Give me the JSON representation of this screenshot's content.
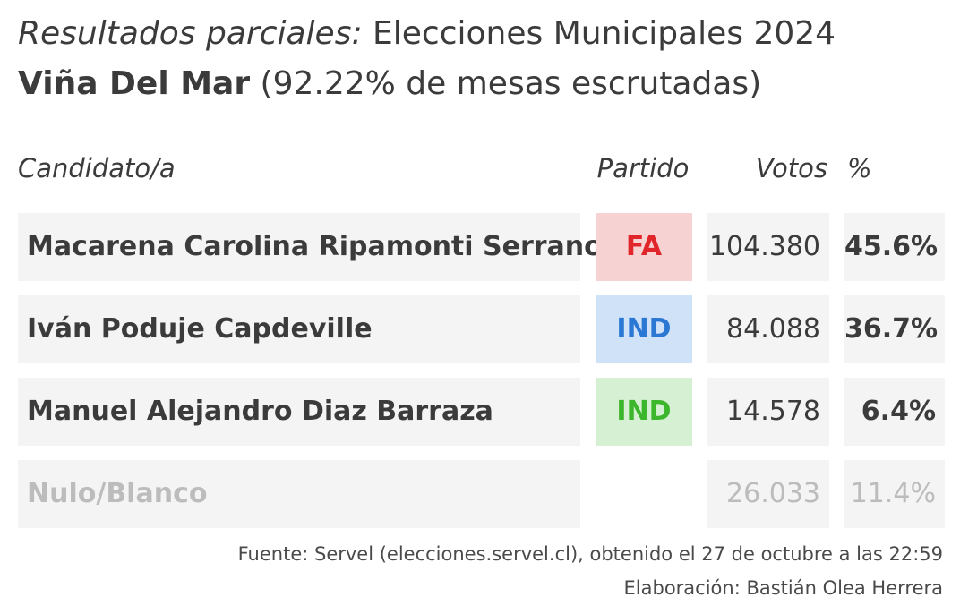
{
  "title": {
    "line1_italic": "Resultados parciales:",
    "line1_rest": " Elecciones Municipales 2024",
    "line2_bold": "Viña Del Mar",
    "line2_rest": " (92.22% de mesas escrutadas)"
  },
  "headers": {
    "candidate": "Candidato/a",
    "party": "Partido",
    "votes": "Votos",
    "percent": "%"
  },
  "chart_data": {
    "type": "table",
    "columns": [
      "Candidato/a",
      "Partido",
      "Votos",
      "%"
    ],
    "rows": [
      {
        "candidate": "Macarena Carolina Ripamonti Serrano",
        "party": "FA",
        "votes": "104.380",
        "percent": "45.6%",
        "party_bg": "#f6d2d2",
        "party_color": "#e0262a"
      },
      {
        "candidate": "Iván Poduje Capdeville",
        "party": "IND",
        "votes": "84.088",
        "percent": "36.7%",
        "party_bg": "#cfe2f7",
        "party_color": "#2a78d4"
      },
      {
        "candidate": "Manuel Alejandro Diaz Barraza",
        "party": "IND",
        "votes": "14.578",
        "percent": "6.4%",
        "party_bg": "#d6f0d3",
        "party_color": "#3cb62a"
      },
      {
        "candidate": "Nulo/Blanco",
        "party": "",
        "votes": "26.033",
        "percent": "11.4%",
        "party_bg": "",
        "party_color": ""
      }
    ]
  },
  "footer": {
    "source": "Fuente: Servel (elecciones.servel.cl), obtenido el 27 de octubre a las 22:59",
    "author": "Elaboración: Bastián Olea Herrera"
  }
}
